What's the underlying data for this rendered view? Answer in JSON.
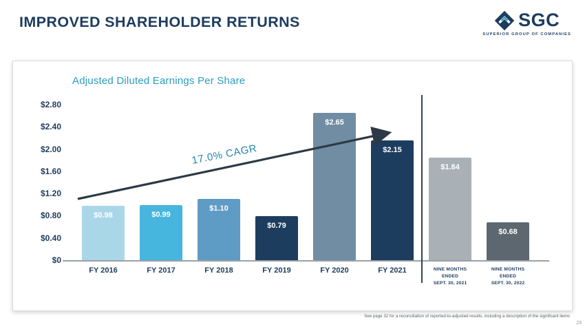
{
  "slide": {
    "title": "IMPROVED SHAREHOLDER RETURNS",
    "page_number": "23",
    "footnote": "See page 32 for a reconciliation of reported-to-adjusted results, including a description of the significant items"
  },
  "logo": {
    "name": "SGC",
    "subtitle": "SUPERIOR GROUP OF COMPANIES",
    "icon": "sgc-diamond-chevron-icon",
    "brand_navy": "#1d3c5e",
    "brand_teal": "#2b9cbe"
  },
  "chart_data": {
    "type": "bar",
    "title": "Adjusted Diluted Earnings Per Share",
    "categories": [
      "FY 2016",
      "FY 2017",
      "FY 2018",
      "FY 2019",
      "FY 2020",
      "FY 2021",
      "NINE MONTHS\nENDED\nSEPT. 30, 2021",
      "NINE MONTHS\nENDED\nSEPT. 30, 2022"
    ],
    "values": [
      0.98,
      0.99,
      1.1,
      0.79,
      2.65,
      2.15,
      1.84,
      0.68
    ],
    "value_labels": [
      "$0.98",
      "$0.99",
      "$1.10",
      "$0.79",
      "$2.65",
      "$2.15",
      "$1.84",
      "$0.68"
    ],
    "bar_colors": [
      "#a9d7e8",
      "#46b6de",
      "#5f9cc5",
      "#1d3d5e",
      "#708da3",
      "#1d3d5e",
      "#a9b0b6",
      "#5d6770"
    ],
    "yticks": [
      "$2.80",
      "$2.40",
      "$2.00",
      "$1.60",
      "$1.20",
      "$0.80",
      "$0.40",
      "$0"
    ],
    "ylim": [
      0,
      2.8
    ],
    "annotation": "17.0% CAGR",
    "divider_after_index": 5,
    "grid": false,
    "legend": false,
    "xlabel": "",
    "ylabel": ""
  },
  "colors": {
    "title": "#1d3c5e",
    "chart_title": "#2b9cbe",
    "annotation": "#2486ae",
    "arrow": "#2c3a46",
    "axis_label": "#1d3c5e",
    "divider": "#33424f"
  }
}
